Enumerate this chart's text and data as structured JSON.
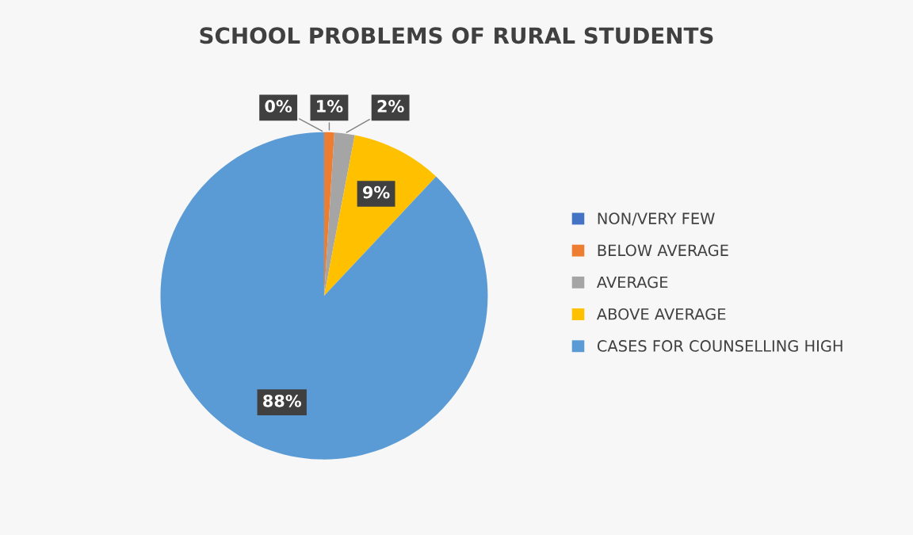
{
  "chart_data": {
    "type": "pie",
    "title": "SCHOOL PROBLEMS OF RURAL STUDENTS",
    "categories": [
      "NON/VERY FEW",
      "BELOW AVERAGE",
      "AVERAGE",
      "ABOVE AVERAGE",
      "CASES FOR COUNSELLING HIGH"
    ],
    "values": [
      0,
      1,
      2,
      9,
      88
    ],
    "colors": [
      "#4472c4",
      "#ed7d31",
      "#a5a5a5",
      "#ffc000",
      "#5b9bd5"
    ],
    "value_labels": [
      "0%",
      "1%",
      "2%",
      "9%",
      "88%"
    ],
    "legend": "right"
  }
}
